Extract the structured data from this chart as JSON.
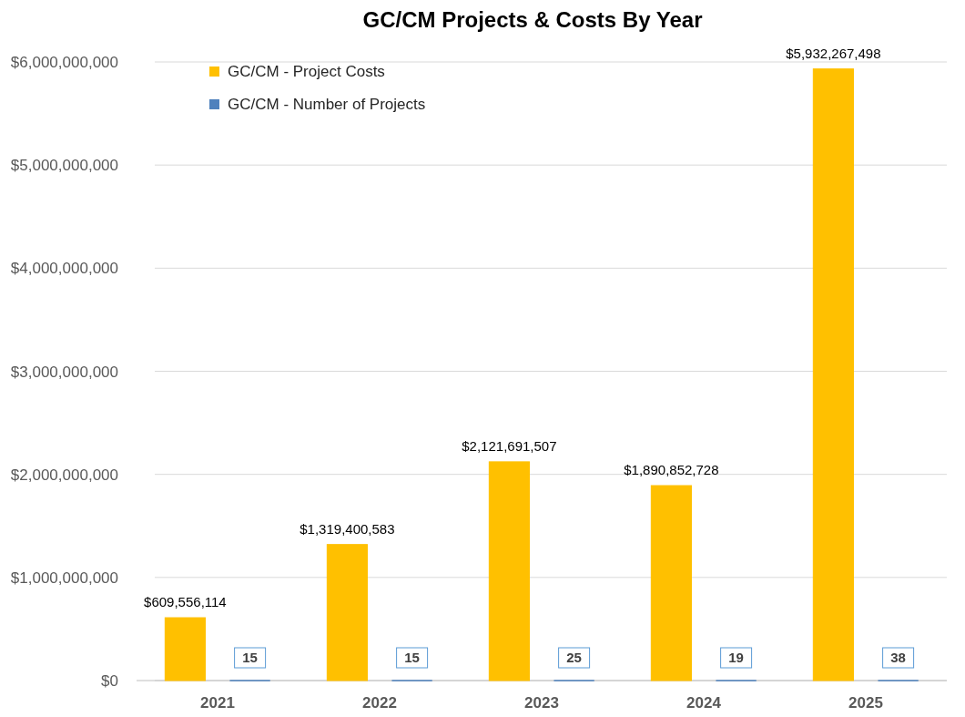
{
  "chart_data": {
    "type": "bar",
    "title": "GC/CM Projects & Costs By Year",
    "categories": [
      "2021",
      "2022",
      "2023",
      "2024",
      "2025"
    ],
    "series": [
      {
        "name": "GC/CM - Project Costs",
        "color": "#ffc000",
        "values": [
          609556114,
          1319400583,
          2121691507,
          1890852728,
          5932267498
        ],
        "value_labels": [
          "$609,556,114",
          "$1,319,400,583",
          "$2,121,691,507",
          "$1,890,852,728",
          "$5,932,267,498"
        ]
      },
      {
        "name": "GC/CM - Number of Projects",
        "color": "#4f81bd",
        "values": [
          15,
          15,
          25,
          19,
          38
        ],
        "value_labels": [
          "15",
          "15",
          "25",
          "19",
          "38"
        ]
      }
    ],
    "ylim": [
      0,
      6000000000
    ],
    "yticks": [
      {
        "value": 0,
        "label": "$0"
      },
      {
        "value": 1000000000,
        "label": "$1,000,000,000"
      },
      {
        "value": 2000000000,
        "label": "$2,000,000,000"
      },
      {
        "value": 3000000000,
        "label": "$3,000,000,000"
      },
      {
        "value": 4000000000,
        "label": "$4,000,000,000"
      },
      {
        "value": 5000000000,
        "label": "$5,000,000,000"
      },
      {
        "value": 6000000000,
        "label": "$6,000,000,000"
      }
    ],
    "grid": "y",
    "legend": "top left"
  }
}
